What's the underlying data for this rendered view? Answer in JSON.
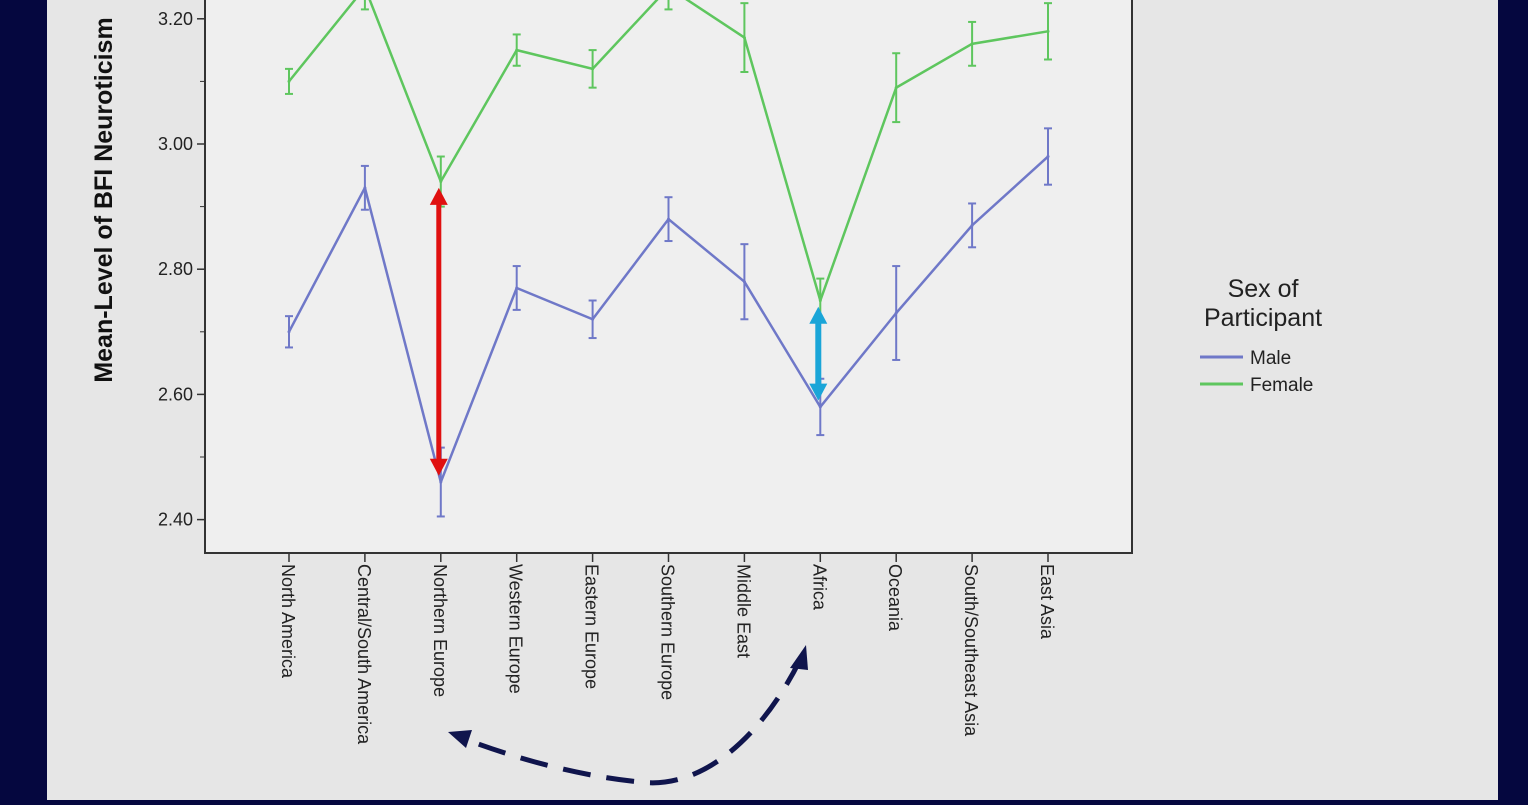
{
  "colors": {
    "frame": "#05073f",
    "panel": "#e6e6e6",
    "plot_bg": "#efefef",
    "axis": "#333333",
    "male": "#6f78c8",
    "female": "#5ec65e",
    "red_arrow": "#e01010",
    "red_glow": "#ffb400",
    "blue_arrow": "#1aa5d8",
    "blue_glow": "#7fe8ff",
    "curved_arrow": "#10154d"
  },
  "chart_data": {
    "type": "line",
    "ylabel": "Mean-Level of BFI Neuroticism",
    "ylim": [
      2.35,
      3.3
    ],
    "yticks": [
      "2.40",
      "2.60",
      "2.80",
      "3.00",
      "3.20"
    ],
    "categories": [
      "North America",
      "Central/South America",
      "Northern Europe",
      "Western Europe",
      "Eastern Europe",
      "Southern Europe",
      "Middle East",
      "Africa",
      "Oceania",
      "South/Southeast Asia",
      "East Asia"
    ],
    "series": [
      {
        "name": "Male",
        "values": [
          2.7,
          2.93,
          2.46,
          2.77,
          2.72,
          2.88,
          2.78,
          2.58,
          2.73,
          2.87,
          2.98
        ],
        "err": [
          0.025,
          0.035,
          0.055,
          0.035,
          0.03,
          0.035,
          0.06,
          0.045,
          0.075,
          0.035,
          0.045
        ]
      },
      {
        "name": "Female",
        "values": [
          3.1,
          3.25,
          2.94,
          3.15,
          3.12,
          3.25,
          3.17,
          2.75,
          3.09,
          3.16,
          3.18
        ],
        "err": [
          0.02,
          0.035,
          0.04,
          0.025,
          0.03,
          0.035,
          0.055,
          0.035,
          0.055,
          0.035,
          0.045
        ]
      }
    ],
    "legend": {
      "title": "Sex of\nParticipant",
      "position": "right"
    },
    "annotations": [
      {
        "type": "double-arrow",
        "category": "Northern Europe",
        "from": 2.47,
        "to": 2.93,
        "color": "red"
      },
      {
        "type": "double-arrow",
        "category": "Africa",
        "from": 2.59,
        "to": 2.74,
        "color": "blue"
      },
      {
        "type": "curved-dashed-arrow",
        "from_category": "Africa",
        "to_category": "Northern Europe"
      }
    ]
  }
}
